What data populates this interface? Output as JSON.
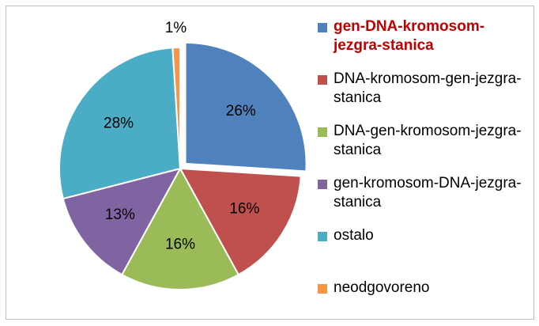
{
  "chart_data": {
    "type": "pie",
    "categories": [
      "gen-DNA-kromosom-jezgra-stanica",
      "DNA-kromosom-gen-jezgra-stanica",
      "DNA-gen-kromosom-jezgra-stanica",
      "gen-kromosom-DNA-jezgra-stanica",
      "ostalo",
      "neodgovoreno"
    ],
    "values": [
      26,
      16,
      16,
      13,
      28,
      1
    ],
    "value_labels": [
      "26%",
      "16%",
      "16%",
      "13%",
      "28%",
      "1%"
    ],
    "colors": [
      "#4f81bd",
      "#c0504d",
      "#9bbb59",
      "#8064a2",
      "#4bacc6",
      "#f79646"
    ],
    "legend": "right"
  }
}
